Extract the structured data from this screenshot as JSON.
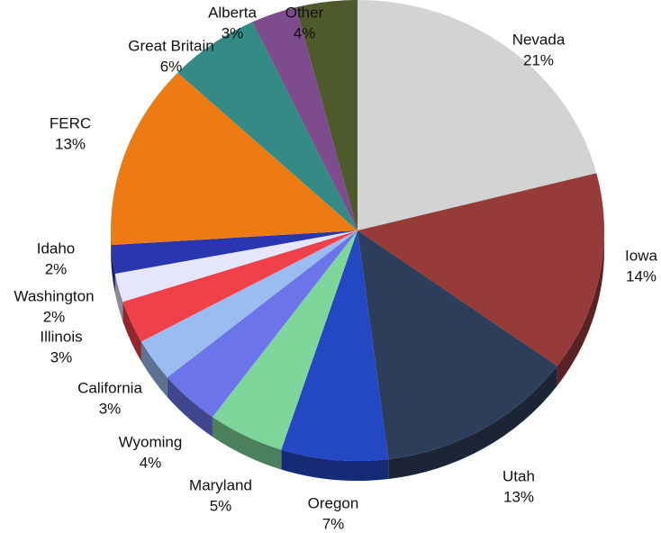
{
  "chart_data": {
    "type": "pie",
    "categories": [
      "Nevada",
      "Iowa",
      "Utah",
      "Oregon",
      "Maryland",
      "Wyoming",
      "California",
      "Illinois",
      "Washington",
      "Idaho",
      "FERC",
      "Great Britain",
      "Alberta",
      "Other"
    ],
    "values": [
      21,
      14,
      13,
      7,
      5,
      4,
      3,
      3,
      2,
      2,
      13,
      6,
      3,
      4
    ],
    "value_labels": [
      "21%",
      "14%",
      "13%",
      "7%",
      "5%",
      "4%",
      "3%",
      "3%",
      "2%",
      "2%",
      "13%",
      "6%",
      "3%",
      "4%"
    ],
    "colors": [
      "#d3d3d3",
      "#963a3a",
      "#2d3e5a",
      "#2447c4",
      "#7ed69b",
      "#6b74e8",
      "#9bbcf0",
      "#f0414a",
      "#e6e6fa",
      "#2a35b0",
      "#ee7a12",
      "#348a84",
      "#7e4c8c",
      "#4f5a2c"
    ]
  }
}
